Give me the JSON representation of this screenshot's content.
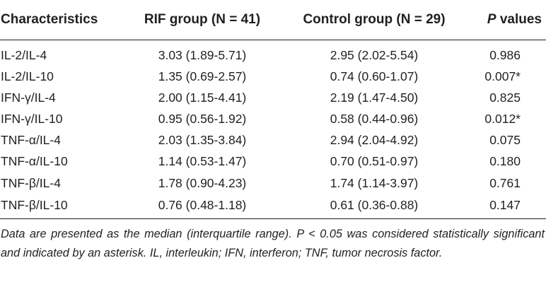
{
  "table": {
    "headers": {
      "characteristics": "Characteristics",
      "rif": "RIF group (N = 41)",
      "control": "Control group (N = 29)",
      "p_prefix": "P",
      "p_suffix": " values"
    },
    "rows": [
      {
        "name": "IL-2/IL-4",
        "rif": "3.03 (1.89-5.71)",
        "control": "2.95 (2.02-5.54)",
        "p": "0.986"
      },
      {
        "name": "IL-2/IL-10",
        "rif": "1.35 (0.69-2.57)",
        "control": "0.74 (0.60-1.07)",
        "p": "0.007*"
      },
      {
        "name": "IFN-γ/IL-4",
        "rif": "2.00 (1.15-4.41)",
        "control": "2.19 (1.47-4.50)",
        "p": "0.825"
      },
      {
        "name": "IFN-γ/IL-10",
        "rif": "0.95 (0.56-1.92)",
        "control": "0.58 (0.44-0.96)",
        "p": "0.012*"
      },
      {
        "name": "TNF-α/IL-4",
        "rif": "2.03 (1.35-3.84)",
        "control": "2.94 (2.04-4.92)",
        "p": "0.075"
      },
      {
        "name": "TNF-α/IL-10",
        "rif": "1.14 (0.53-1.47)",
        "control": "0.70 (0.51-0.97)",
        "p": "0.180"
      },
      {
        "name": "TNF-β/IL-4",
        "rif": "1.78 (0.90-4.23)",
        "control": "1.74 (1.14-3.97)",
        "p": "0.761"
      },
      {
        "name": "TNF-β/IL-10",
        "rif": "0.76 (0.48-1.18)",
        "control": "0.61 (0.36-0.88)",
        "p": "0.147"
      }
    ]
  },
  "footnote": "Data are presented as the median (interquartile range). P < 0.05 was considered statistically significant and indicated by an asterisk. IL, interleukin; IFN, interferon; TNF, tumor necrosis factor."
}
